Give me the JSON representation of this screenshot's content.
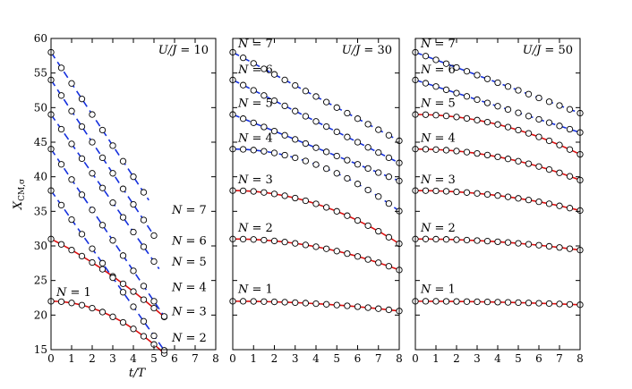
{
  "chart_data": [
    {
      "type": "line",
      "annotation": "U/J = 10",
      "xlabel": "t/T",
      "ylabel": "X_CM,σ",
      "xlim": [
        0,
        8
      ],
      "ylim": [
        15,
        60
      ],
      "xticks": [
        "0",
        "1",
        "2",
        "3",
        "4",
        "5",
        "6",
        "7",
        "8"
      ],
      "yticks": [
        "15",
        "20",
        "25",
        "30",
        "35",
        "40",
        "45",
        "50",
        "55",
        "60"
      ],
      "series": [
        {
          "name": "N = 1",
          "label": "N = 1",
          "style": "solid-red",
          "x0": 22,
          "a": 0,
          "b": -0.25,
          "tmax": 5.5
        },
        {
          "name": "N = 2",
          "label": "N = 2",
          "style": "solid-red",
          "x0": 31,
          "a": -1.5,
          "b": -0.1,
          "tmax": 5.5
        },
        {
          "name": "N = 3",
          "label": "N = 3",
          "style": "dashed-blue",
          "x0": 38,
          "a": -4.2,
          "b": 0,
          "tmax": 5.5
        },
        {
          "name": "N = 4",
          "label": "N = 4",
          "style": "dashed-blue",
          "x0": 44,
          "a": -4.4,
          "b": 0,
          "tmax": 5.5
        },
        {
          "name": "N = 5",
          "label": "N = 5",
          "style": "dashed-blue",
          "x0": 49,
          "a": -4.25,
          "b": 0,
          "tmax": 5.25
        },
        {
          "name": "N = 6",
          "label": "N = 6",
          "style": "dashed-blue",
          "x0": 54,
          "a": -4.5,
          "b": 0,
          "tmax": 5.0
        },
        {
          "name": "N = 7",
          "label": "N = 7",
          "style": "dashed-blue",
          "x0": 58,
          "a": -4.5,
          "b": 0,
          "tmax": 4.75
        }
      ]
    },
    {
      "type": "line",
      "annotation": "U/J = 30",
      "xlabel": "",
      "ylabel": "",
      "xlim": [
        0,
        8
      ],
      "ylim": [
        15,
        60
      ],
      "xticks": [
        "0",
        "1",
        "2",
        "3",
        "4",
        "5",
        "6",
        "7",
        "8"
      ],
      "yticks": [],
      "series": [
        {
          "name": "N = 1",
          "label": "N = 1",
          "style": "solid-red",
          "x0": 22,
          "a": 0,
          "b": -0.022,
          "tmax": 8
        },
        {
          "name": "N = 2",
          "label": "N = 2",
          "style": "solid-red",
          "x0": 31,
          "a": 0,
          "b": -0.07,
          "tmax": 8
        },
        {
          "name": "N = 3",
          "label": "N = 3",
          "style": "solid-red",
          "x0": 38,
          "a": 0,
          "b": -0.12,
          "tmax": 8
        },
        {
          "name": "N = 4",
          "label": "N = 4",
          "style": "dashed-blue",
          "x0": 44,
          "a": 0,
          "b": -0.14,
          "tmax": 8
        },
        {
          "name": "N = 5",
          "label": "N = 5",
          "style": "dashed-blue",
          "x0": 49,
          "a": -1.2,
          "b": 0,
          "tmax": 8
        },
        {
          "name": "N = 6",
          "label": "N = 6",
          "style": "dashed-blue",
          "x0": 54,
          "a": -1.5,
          "b": 0,
          "tmax": 8
        },
        {
          "name": "N = 7",
          "label": "N = 7",
          "style": "dashed-blue",
          "x0": 58,
          "a": -1.6,
          "b": 0,
          "tmax": 8
        }
      ]
    },
    {
      "type": "line",
      "annotation": "U/J = 50",
      "xlabel": "",
      "ylabel": "",
      "xlim": [
        0,
        8
      ],
      "ylim": [
        15,
        60
      ],
      "xticks": [
        "0",
        "1",
        "2",
        "3",
        "4",
        "5",
        "6",
        "7",
        "8"
      ],
      "yticks": [],
      "series": [
        {
          "name": "N = 1",
          "label": "N = 1",
          "style": "solid-red",
          "x0": 22,
          "a": 0,
          "b": -0.008,
          "tmax": 8
        },
        {
          "name": "N = 2",
          "label": "N = 2",
          "style": "solid-red",
          "x0": 31,
          "a": 0,
          "b": -0.025,
          "tmax": 8
        },
        {
          "name": "N = 3",
          "label": "N = 3",
          "style": "solid-red",
          "x0": 38,
          "a": 0,
          "b": -0.045,
          "tmax": 8
        },
        {
          "name": "N = 4",
          "label": "N = 4",
          "style": "solid-red",
          "x0": 44,
          "a": 0,
          "b": -0.07,
          "tmax": 8
        },
        {
          "name": "N = 5",
          "label": "N = 5",
          "style": "solid-red",
          "x0": 49,
          "a": 0,
          "b": -0.09,
          "tmax": 8
        },
        {
          "name": "N = 6",
          "label": "N = 6",
          "style": "dashed-blue",
          "x0": 54,
          "a": -0.95,
          "b": 0,
          "tmax": 8
        },
        {
          "name": "N = 7",
          "label": "N = 7",
          "style": "dashed-blue",
          "x0": 58,
          "a": -1.1,
          "b": 0,
          "tmax": 8
        }
      ]
    }
  ],
  "colors": {
    "solid": "#dd1111",
    "dashed": "#1530dd",
    "marker_fill": "#ffffff",
    "marker_edge": "#000000"
  }
}
